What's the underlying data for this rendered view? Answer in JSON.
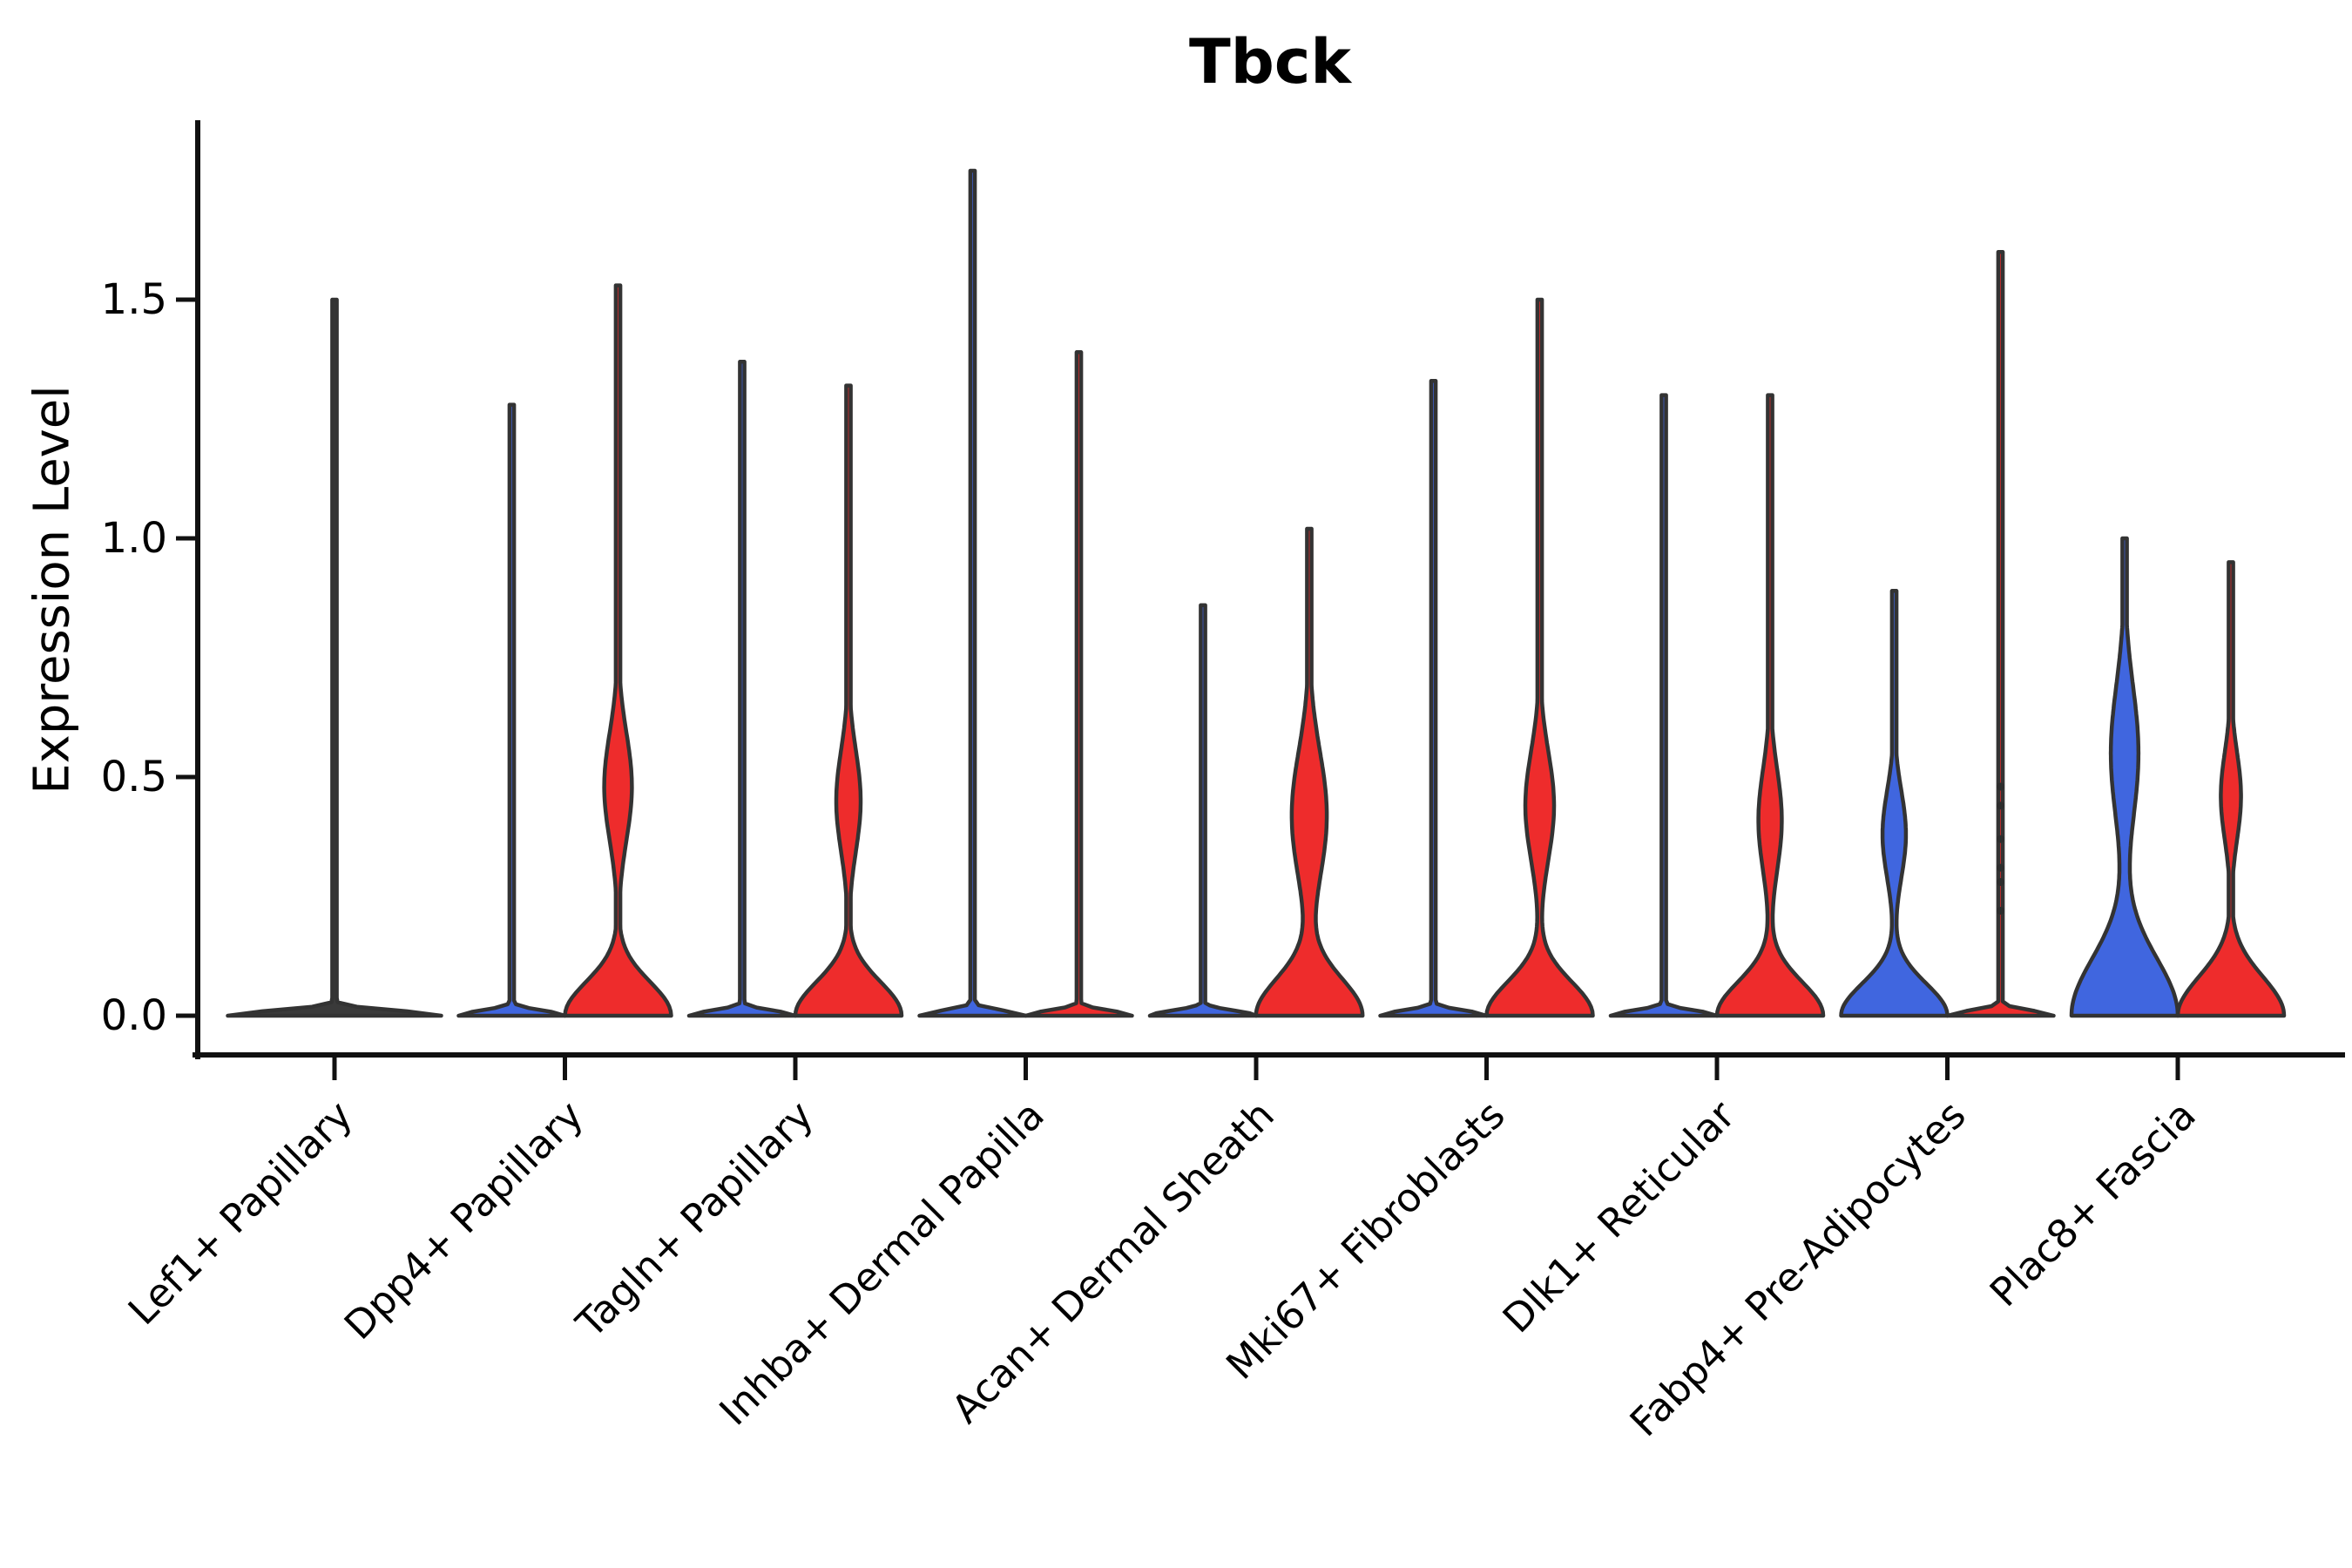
{
  "colors": {
    "red": "#EE2C2C",
    "blue": "#4066DF",
    "outline": "#333333",
    "axis": "#111111",
    "background": "#ffffff",
    "none": "#3a3a3a"
  },
  "chart_data": {
    "type": "violin",
    "title": "Tbck",
    "ylabel": "Expression Level",
    "xlabel": "",
    "legend_position": "none",
    "grid": false,
    "yticks": [
      "0.0",
      "0.5",
      "1.0",
      "1.5"
    ],
    "ytick_values": [
      0.0,
      0.5,
      1.0,
      1.5
    ],
    "ylim": [
      -0.08,
      1.87
    ],
    "categories": [
      "Lef1+ Papillary",
      "Dpp4+ Papillary",
      "Tagln+ Papillary",
      "Inhba+ Dermal Papilla",
      "Acan+ Dermal Sheath",
      "Mki67+ Fibroblasts",
      "Dlk1+ Reticular",
      "Fabp4+ Pre-Adipocytes",
      "Plac8+ Fascia"
    ],
    "split_note": "each category has a left (blue condition) and right (red condition) violin; most mass at expression 0",
    "violins": [
      {
        "category_index": 0,
        "category": "Lef1+ Papillary",
        "side": "full",
        "color": "none",
        "flat": true,
        "max": 1.5
      },
      {
        "category_index": 1,
        "category": "Dpp4+ Papillary",
        "side": "left",
        "color": "blue",
        "flat": true,
        "max": 1.28
      },
      {
        "category_index": 1,
        "category": "Dpp4+ Papillary",
        "side": "right",
        "color": "red",
        "flat": false,
        "max": 1.53,
        "base_sigma": 0.1,
        "bulge": {
          "center": 0.48,
          "sigma": 0.16,
          "frac": 0.26
        }
      },
      {
        "category_index": 2,
        "category": "Tagln+ Papillary",
        "side": "left",
        "color": "blue",
        "flat": true,
        "max": 1.37
      },
      {
        "category_index": 2,
        "category": "Tagln+ Papillary",
        "side": "right",
        "color": "red",
        "flat": false,
        "max": 1.32,
        "base_sigma": 0.1,
        "bulge": {
          "center": 0.45,
          "sigma": 0.15,
          "frac": 0.23
        }
      },
      {
        "category_index": 3,
        "category": "Inhba+ Dermal Papilla",
        "side": "left",
        "color": "blue",
        "flat": true,
        "max": 1.77
      },
      {
        "category_index": 3,
        "category": "Inhba+ Dermal Papilla",
        "side": "right",
        "color": "red",
        "flat": true,
        "max": 1.39
      },
      {
        "category_index": 4,
        "category": "Acan+ Dermal Sheath",
        "side": "left",
        "color": "blue",
        "flat": true,
        "max": 0.86
      },
      {
        "category_index": 4,
        "category": "Acan+ Dermal Sheath",
        "side": "right",
        "color": "red",
        "flat": false,
        "max": 1.02,
        "base_sigma": 0.11,
        "bulge": {
          "center": 0.42,
          "sigma": 0.19,
          "frac": 0.33
        }
      },
      {
        "category_index": 5,
        "category": "Mki67+ Fibroblasts",
        "side": "left",
        "color": "blue",
        "flat": true,
        "max": 1.33
      },
      {
        "category_index": 5,
        "category": "Mki67+ Fibroblasts",
        "side": "right",
        "color": "red",
        "flat": false,
        "max": 1.5,
        "base_sigma": 0.1,
        "bulge": {
          "center": 0.44,
          "sigma": 0.16,
          "frac": 0.27
        }
      },
      {
        "category_index": 6,
        "category": "Dlk1+ Reticular",
        "side": "left",
        "color": "blue",
        "flat": true,
        "max": 1.3
      },
      {
        "category_index": 6,
        "category": "Dlk1+ Reticular",
        "side": "right",
        "color": "red",
        "flat": false,
        "max": 1.3,
        "base_sigma": 0.1,
        "bulge": {
          "center": 0.41,
          "sigma": 0.15,
          "frac": 0.22
        }
      },
      {
        "category_index": 7,
        "category": "Fabp4+ Pre-Adipocytes",
        "side": "left",
        "color": "blue",
        "flat": false,
        "max": 0.89,
        "base_sigma": 0.095,
        "bulge": {
          "center": 0.38,
          "sigma": 0.13,
          "frac": 0.22
        }
      },
      {
        "category_index": 7,
        "category": "Fabp4+ Pre-Adipocytes",
        "side": "right",
        "color": "red",
        "flat": true,
        "max": 1.6,
        "dots": [
          0.22,
          0.28,
          0.31,
          0.37,
          0.44,
          0.48
        ]
      },
      {
        "category_index": 8,
        "category": "Plac8+ Fascia",
        "side": "left",
        "color": "blue",
        "flat": false,
        "max": 1.0,
        "base_sigma": 0.17,
        "bulge": {
          "center": 0.55,
          "sigma": 0.2,
          "frac": 0.26
        }
      },
      {
        "category_index": 8,
        "category": "Plac8+ Fascia",
        "side": "right",
        "color": "red",
        "flat": false,
        "max": 0.95,
        "base_sigma": 0.115,
        "bulge": {
          "center": 0.46,
          "sigma": 0.13,
          "frac": 0.19
        }
      }
    ]
  }
}
